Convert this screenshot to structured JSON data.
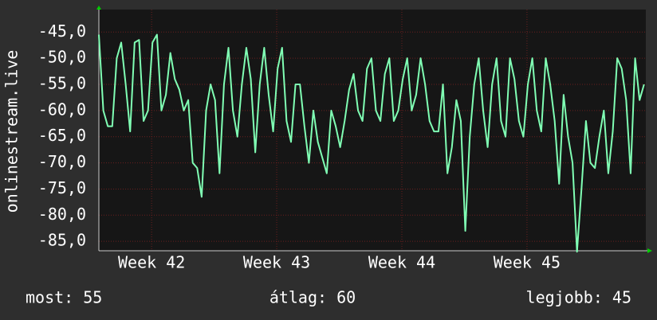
{
  "chart_data": {
    "type": "line",
    "y_label": "onlinestream.live",
    "x": [
      0,
      0.25,
      0.5,
      0.75,
      1,
      1.25,
      1.5,
      1.75,
      2,
      2.25,
      2.5,
      2.75,
      3,
      3.25,
      3.5,
      3.75,
      4,
      4.25,
      4.5,
      4.75,
      5,
      5.25,
      5.5,
      5.75,
      6,
      6.25,
      6.5,
      6.75,
      7,
      7.25,
      7.5,
      7.75,
      8,
      8.25,
      8.5,
      8.75,
      9,
      9.25,
      9.5,
      9.75,
      10,
      10.25,
      10.5,
      10.75,
      11,
      11.25,
      11.5,
      11.75,
      12,
      12.25,
      12.5,
      12.75,
      13,
      13.25,
      13.5,
      13.75,
      14,
      14.25,
      14.5,
      14.75,
      15,
      15.25,
      15.5,
      15.75,
      16,
      16.25,
      16.5,
      16.75,
      17,
      17.25,
      17.5,
      17.75,
      18,
      18.25,
      18.5,
      18.75,
      19,
      19.25,
      19.5,
      19.75,
      20,
      20.25,
      20.5,
      20.75,
      21,
      21.25,
      21.5,
      21.75,
      22,
      22.25,
      22.5,
      22.75,
      23,
      23.25,
      23.5,
      23.75,
      24,
      24.25,
      24.5,
      24.75,
      25,
      25.25,
      25.5,
      25.75,
      26,
      26.25,
      26.5,
      26.75,
      27,
      27.25,
      27.5,
      27.75,
      28,
      28.25,
      28.5,
      28.75,
      29,
      29.25,
      29.5,
      29.75,
      30,
      30.25,
      30.5
    ],
    "series": [
      {
        "name": "onlinestream.live",
        "color": "#80ffb4",
        "values": [
          -45.5,
          -60,
          -63,
          -63,
          -50,
          -47,
          -55,
          -64,
          -47,
          -46.5,
          -62,
          -60,
          -47,
          -45.5,
          -60,
          -57,
          -49,
          -54,
          -56,
          -60,
          -58,
          -70,
          -71,
          -76.5,
          -60,
          -55,
          -58,
          -72,
          -55,
          -48,
          -60,
          -65,
          -55,
          -48,
          -54,
          -68,
          -55,
          -48,
          -57,
          -64,
          -52,
          -48,
          -62,
          -66,
          -55,
          -55,
          -63,
          -70,
          -60,
          -66,
          -69,
          -72,
          -60,
          -63,
          -67,
          -62,
          -56,
          -53,
          -60,
          -62,
          -52,
          -50,
          -60,
          -62,
          -53,
          -50,
          -62,
          -60,
          -54,
          -50,
          -60,
          -57,
          -50,
          -55,
          -62,
          -64,
          -64,
          -55,
          -72,
          -67,
          -58,
          -62,
          -83,
          -65,
          -55,
          -50,
          -60,
          -67,
          -55,
          -50,
          -62,
          -65,
          -50,
          -54,
          -62,
          -65,
          -55,
          -50,
          -60,
          -64,
          -50,
          -55,
          -62,
          -74,
          -57,
          -65,
          -70,
          -87,
          -75,
          -62,
          -70,
          -71,
          -65,
          -60,
          -72,
          -64,
          -50,
          -52,
          -58,
          -72,
          -50,
          -58,
          -55
        ]
      }
    ],
    "xlim": [
      0,
      30.6
    ],
    "xticks": [
      {
        "value": 2.95,
        "label": "Week 42"
      },
      {
        "value": 9.95,
        "label": "Week 43"
      },
      {
        "value": 16.95,
        "label": "Week 44"
      },
      {
        "value": 23.95,
        "label": "Week 45"
      }
    ],
    "ylim": [
      -86.8,
      -40.7
    ],
    "yticks": [
      {
        "value": -45,
        "label": "-45,0"
      },
      {
        "value": -50,
        "label": "-50,0"
      },
      {
        "value": -55,
        "label": "-55,0"
      },
      {
        "value": -60,
        "label": "-60,0"
      },
      {
        "value": -65,
        "label": "-65,0"
      },
      {
        "value": -70,
        "label": "-70,0"
      },
      {
        "value": -75,
        "label": "-75,0"
      },
      {
        "value": -80,
        "label": "-80,0"
      },
      {
        "value": -85,
        "label": "-85,0"
      }
    ],
    "grid": true,
    "stats": [
      "most: 55",
      "átlag: 60",
      "legjobb: 45"
    ]
  }
}
